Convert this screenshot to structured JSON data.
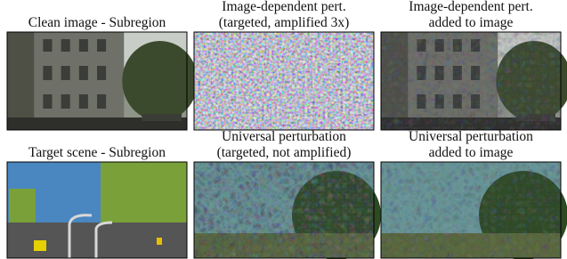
{
  "panels": [
    {
      "caption": [
        "Clean image - Subregion"
      ]
    },
    {
      "caption": [
        "Image-dependent pert.",
        "(targeted, amplified 3x)"
      ]
    },
    {
      "caption": [
        "Image-dependent pert.",
        "added to image"
      ]
    },
    {
      "caption": [
        "Target scene - Subregion"
      ]
    },
    {
      "caption": [
        "Universal perturbation",
        "(targeted, not amplified)"
      ]
    },
    {
      "caption": [
        "Universal perturbation",
        "added to image"
      ]
    }
  ]
}
